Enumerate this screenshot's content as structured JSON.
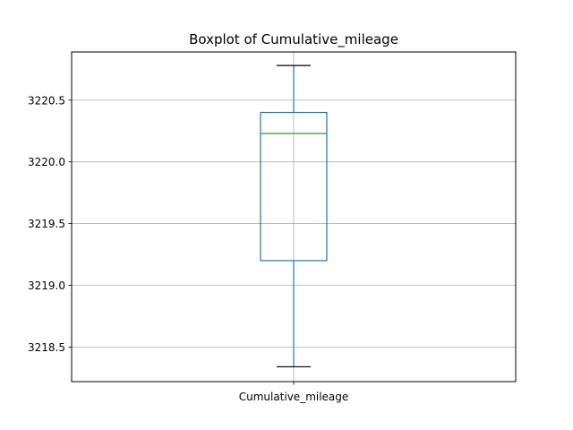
{
  "chart_data": {
    "type": "boxplot",
    "title": "Boxplot of Cumulative_mileage",
    "xlabel": "",
    "ylabel": "",
    "categories": [
      "Cumulative_mileage"
    ],
    "boxes": [
      {
        "whisker_low": 3218.34,
        "q1": 3219.2,
        "median": 3220.23,
        "q3": 3220.4,
        "whisker_high": 3220.78
      }
    ],
    "ylim": [
      3218.22,
      3220.89
    ],
    "yticks": [
      3218.5,
      3219.0,
      3219.5,
      3220.0,
      3220.5
    ],
    "ytick_labels": [
      "3218.5",
      "3219.0",
      "3219.5",
      "3220.0",
      "3220.5"
    ],
    "grid": true,
    "colors": {
      "box": "#1f77b4",
      "median": "#2ca02c",
      "caps": "#000000",
      "grid": "#b0b0b0"
    }
  }
}
